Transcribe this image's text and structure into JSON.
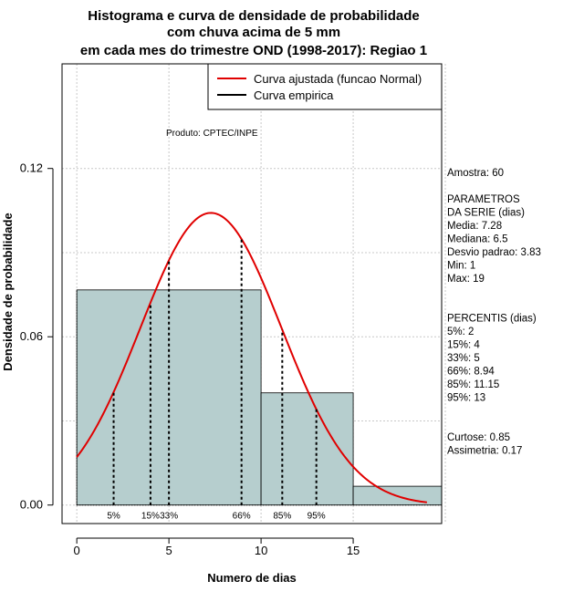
{
  "chart_data": {
    "type": "histogram",
    "title_lines": [
      "Histograma e curva de densidade de probabilidade",
      "com chuva acima de 5 mm",
      "em cada mes do trimestre OND (1998-2017): Regiao 1"
    ],
    "xlabel": "Numero de dias",
    "ylabel": "Densidade de probabilidade",
    "xlim": [
      -0.8,
      19.8
    ],
    "ylim": [
      -0.0066,
      0.1573
    ],
    "x_ticks": [
      0,
      5,
      10,
      15
    ],
    "y_ticks": [
      0.0,
      0.06,
      0.12
    ],
    "y_tick_labels": [
      "0.00",
      "0.06",
      "0.12"
    ],
    "grid": true,
    "bins": [
      {
        "start": 0,
        "end": 10,
        "density": 0.0767
      },
      {
        "start": 10,
        "end": 15,
        "density": 0.04
      },
      {
        "start": 15,
        "end": 20,
        "density": 0.0067
      }
    ],
    "fitted_curve": {
      "name": "Curva ajustada (funcao Normal)",
      "mean": 7.28,
      "sd": 3.83,
      "x_min": 0,
      "x_max": 19,
      "color": "#e00000"
    },
    "empirical_curve": {
      "name": "Curva empirica",
      "color": "#000000"
    },
    "legend_position": "top-right",
    "percentile_marks": [
      {
        "label": "5%",
        "x": 2
      },
      {
        "label": "15%",
        "x": 4
      },
      {
        "label": "33%",
        "x": 5
      },
      {
        "label": "66%",
        "x": 8.94
      },
      {
        "label": "85%",
        "x": 11.15
      },
      {
        "label": "95%",
        "x": 13
      }
    ],
    "bar_color": "#b6cece",
    "annotation": "Produto: CPTEC/INPE",
    "stats_lines": [
      "Amostra: 60",
      "",
      " PARAMETROS",
      "DA SERIE (dias)",
      "  Media: 7.28",
      "  Mediana: 6.5",
      "  Desvio padrao: 3.83",
      "  Min: 1",
      "  Max: 19",
      "",
      "",
      "PERCENTIS (dias)",
      "   5%: 2",
      "   15%: 4",
      "   33%: 5",
      "   66%: 8.94",
      "   85%: 11.15",
      "   95%: 13",
      "",
      "",
      "    Curtose: 0.85",
      "Assimetria: 0.17"
    ]
  }
}
